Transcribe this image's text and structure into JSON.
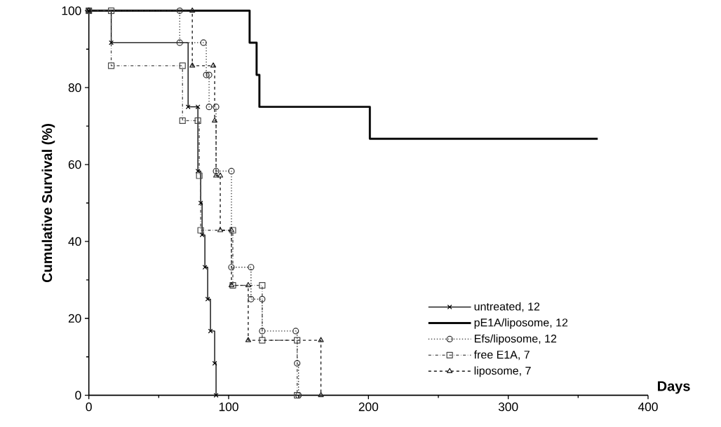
{
  "chart_data": {
    "type": "step",
    "xlabel": "Days",
    "ylabel": "Cumulative  Survival  (%)",
    "xlim": [
      0,
      400
    ],
    "ylim": [
      0,
      100
    ],
    "xticks": [
      0,
      100,
      200,
      300,
      400
    ],
    "yticks": [
      0,
      20,
      40,
      60,
      80,
      100
    ],
    "legend": "bottom right",
    "series": [
      {
        "name": "untreated, 12",
        "color": "#000000",
        "marker": "cross",
        "line_style": "solid",
        "x": [
          0,
          16,
          71,
          78,
          78,
          80,
          81,
          83,
          85,
          87,
          90,
          91
        ],
        "values": [
          100,
          91.7,
          75,
          75,
          58.3,
          50,
          41.7,
          33.3,
          25,
          16.7,
          8.3,
          0
        ]
      },
      {
        "name": "pE1A/liposome, 12",
        "color": "#0a0a0a",
        "marker": "none",
        "line_style": "solid",
        "x": [
          0,
          115,
          120,
          122,
          201,
          364
        ],
        "values": [
          100,
          91.7,
          83.3,
          75,
          66.7,
          66.7
        ]
      },
      {
        "name": "Efs/liposome, 12",
        "color": "#303030",
        "marker": "circle",
        "line_style": "dotted",
        "x": [
          0,
          65,
          65,
          82,
          84,
          86,
          86,
          91,
          91,
          102,
          102,
          116,
          116,
          124,
          124,
          148,
          149,
          150
        ],
        "values": [
          100,
          100,
          91.7,
          91.7,
          83.3,
          83.3,
          75,
          75,
          58.3,
          58.3,
          33.3,
          33.3,
          25,
          25,
          16.7,
          16.7,
          8.3,
          0
        ]
      },
      {
        "name": "free E1A, 7",
        "color": "#484848",
        "marker": "square",
        "line_style": "dashdot",
        "x": [
          0,
          16,
          16,
          67,
          67,
          78,
          79,
          80,
          103,
          103,
          124,
          124,
          149,
          149
        ],
        "values": [
          100,
          100,
          85.7,
          85.7,
          71.4,
          71.4,
          57.1,
          42.9,
          42.9,
          28.6,
          28.6,
          14.3,
          14.3,
          0
        ]
      },
      {
        "name": "liposome, 7",
        "color": "#1c1c1c",
        "marker": "triangle",
        "line_style": "dashed",
        "x": [
          0,
          74,
          74,
          89,
          90,
          91,
          94,
          94,
          102,
          102,
          114,
          114,
          166,
          166
        ],
        "values": [
          100,
          100,
          85.7,
          85.7,
          71.4,
          57.1,
          57.1,
          42.9,
          42.9,
          28.6,
          28.6,
          14.3,
          14.3,
          0
        ]
      }
    ]
  }
}
